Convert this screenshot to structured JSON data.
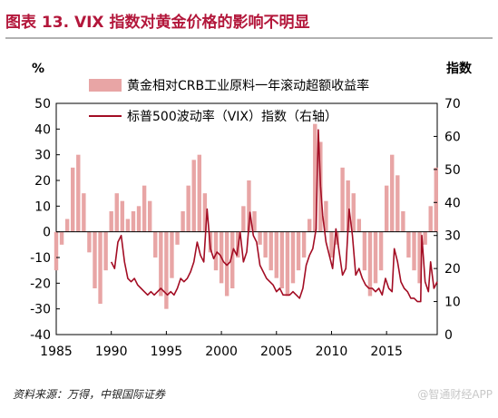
{
  "figure": {
    "title": "图表 13. VIX 指数对黄金价格的影响不明显",
    "source": "资料来源：万得，中银国际证券",
    "watermark": "@智通财经APP"
  },
  "colors": {
    "title": "#b3173b",
    "bars": "#e8a5a5",
    "line": "#a30d24",
    "axis": "#000000"
  },
  "chart_data": {
    "type": "bar+line",
    "left_axis": {
      "unit_label": "%",
      "ylim": [
        -40,
        50
      ],
      "ticks": [
        -40,
        -30,
        -20,
        -10,
        0,
        10,
        20,
        30,
        40,
        50
      ]
    },
    "right_axis": {
      "unit_label": "指数",
      "ylim": [
        0,
        70
      ],
      "ticks": [
        0,
        10,
        20,
        30,
        40,
        50,
        60,
        70
      ]
    },
    "x_axis": {
      "range": [
        1985,
        2019.6
      ],
      "ticks": [
        1985,
        1990,
        1995,
        2000,
        2005,
        2010,
        2015
      ]
    },
    "legend": {
      "position": "top-center"
    },
    "series": [
      {
        "name": "黄金相对CRB工业原料一年滚动超额收益率",
        "type": "bar",
        "axis": "left",
        "x": [
          1985,
          1985.5,
          1986,
          1986.5,
          1987,
          1987.5,
          1988,
          1988.5,
          1989,
          1989.5,
          1990,
          1990.5,
          1991,
          1991.5,
          1992,
          1992.5,
          1993,
          1993.5,
          1994,
          1994.5,
          1995,
          1995.5,
          1996,
          1996.5,
          1997,
          1997.5,
          1998,
          1998.5,
          1999,
          1999.5,
          2000,
          2000.5,
          2001,
          2001.5,
          2002,
          2002.5,
          2003,
          2003.5,
          2004,
          2004.5,
          2005,
          2005.5,
          2006,
          2006.5,
          2007,
          2007.5,
          2008,
          2008.5,
          2009,
          2009.5,
          2010,
          2010.5,
          2011,
          2011.5,
          2012,
          2012.5,
          2013,
          2013.5,
          2014,
          2014.5,
          2015,
          2015.5,
          2016,
          2016.5,
          2017,
          2017.5,
          2018,
          2018.5,
          2019,
          2019.5
        ],
        "values": [
          -15,
          -5,
          5,
          25,
          30,
          15,
          -8,
          -22,
          -28,
          -15,
          8,
          15,
          12,
          5,
          8,
          10,
          18,
          12,
          -10,
          -25,
          -30,
          -18,
          -5,
          8,
          18,
          28,
          30,
          15,
          -8,
          -15,
          -20,
          -25,
          -22,
          -10,
          10,
          20,
          8,
          -5,
          -10,
          -15,
          -18,
          -22,
          -25,
          -20,
          -15,
          -10,
          5,
          42,
          35,
          12,
          -10,
          -5,
          25,
          20,
          15,
          5,
          -15,
          -25,
          -20,
          -15,
          18,
          30,
          22,
          8,
          -10,
          -15,
          -20,
          -5,
          10,
          25
        ]
      },
      {
        "name": "标普500波动率（VIX）指数（右轴）",
        "type": "line",
        "axis": "right",
        "x": [
          1990,
          1990.3,
          1990.6,
          1990.9,
          1991.2,
          1991.5,
          1991.8,
          1992.1,
          1992.4,
          1992.7,
          1993,
          1993.3,
          1993.6,
          1993.9,
          1994.2,
          1994.5,
          1994.8,
          1995.1,
          1995.4,
          1995.7,
          1996,
          1996.3,
          1996.6,
          1996.9,
          1997.2,
          1997.5,
          1997.8,
          1998.1,
          1998.4,
          1998.7,
          1999,
          1999.3,
          1999.6,
          1999.9,
          2000.2,
          2000.5,
          2000.8,
          2001.1,
          2001.4,
          2001.7,
          2002,
          2002.3,
          2002.6,
          2002.9,
          2003.2,
          2003.5,
          2003.8,
          2004.1,
          2004.4,
          2004.7,
          2005,
          2005.3,
          2005.6,
          2005.9,
          2006.2,
          2006.5,
          2006.8,
          2007.1,
          2007.4,
          2007.7,
          2008,
          2008.3,
          2008.6,
          2008.8,
          2009,
          2009.2,
          2009.5,
          2009.8,
          2010.1,
          2010.4,
          2010.7,
          2011,
          2011.3,
          2011.6,
          2011.9,
          2012.2,
          2012.5,
          2012.8,
          2013.1,
          2013.4,
          2013.7,
          2014,
          2014.3,
          2014.6,
          2014.9,
          2015.2,
          2015.5,
          2015.7,
          2016,
          2016.3,
          2016.6,
          2016.9,
          2017.2,
          2017.5,
          2017.8,
          2018.1,
          2018.2,
          2018.5,
          2018.8,
          2019,
          2019.3,
          2019.6
        ],
        "values": [
          22,
          20,
          28,
          30,
          22,
          17,
          16,
          17,
          15,
          14,
          13,
          12,
          13,
          12,
          13,
          14,
          13,
          12,
          13,
          12,
          14,
          17,
          16,
          17,
          19,
          22,
          28,
          24,
          22,
          38,
          26,
          23,
          25,
          24,
          22,
          21,
          22,
          26,
          24,
          31,
          22,
          25,
          37,
          30,
          28,
          21,
          19,
          17,
          16,
          15,
          13,
          14,
          12,
          12,
          12,
          13,
          12,
          11,
          14,
          21,
          24,
          26,
          32,
          62,
          45,
          36,
          28,
          24,
          20,
          32,
          25,
          18,
          20,
          38,
          30,
          18,
          20,
          17,
          15,
          14,
          14,
          13,
          14,
          12,
          17,
          14,
          13,
          26,
          22,
          16,
          14,
          13,
          11,
          11,
          10,
          10,
          30,
          16,
          13,
          22,
          14,
          16
        ]
      }
    ]
  }
}
